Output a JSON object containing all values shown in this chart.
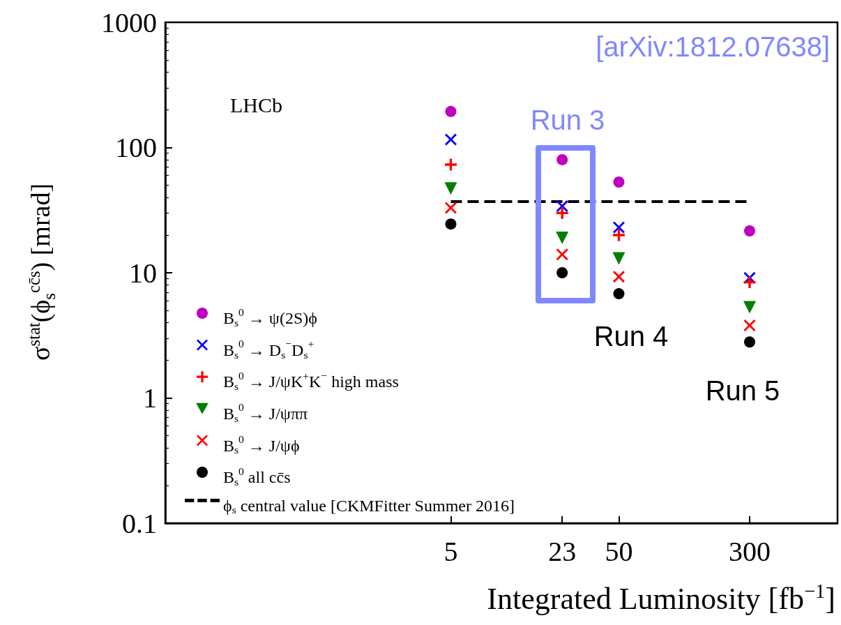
{
  "chart_data": {
    "type": "scatter",
    "xlabel": "Integrated Luminosity [fb$^{−1}$]",
    "ylabel": "σ$^{stat}$(ϕ$_{s}$$^{cc̄s}$) [mrad]",
    "x": [
      5,
      23,
      50,
      300
    ],
    "xlim": [
      0.1,
      1000
    ],
    "xticks": [
      5,
      23,
      50,
      300
    ],
    "ylim": [
      0.1,
      1000
    ],
    "yticks": [
      0.1,
      1,
      10,
      100,
      1000
    ],
    "log": "xy",
    "grid": false,
    "legend": "bottom left",
    "series": [
      {
        "name": "B$_{s}$$^{0}$ → ψ(2S)ϕ",
        "color": "#c000c0",
        "marker": "circle",
        "values": [
          194,
          80,
          53,
          21.6
        ]
      },
      {
        "name": "B$_{s}$$^{0}$ → D$_{s}$$^{−}$D$_{s}$$^{+}$",
        "color": "#0000ff",
        "marker": "x",
        "values": [
          116,
          34,
          23,
          9.1
        ]
      },
      {
        "name": "B$_{s}$$^{0}$ → J/ψK$^{+}$K$^{−}$ high mass",
        "color": "#ff0000",
        "marker": "cross",
        "values": [
          73,
          30,
          20,
          8.4
        ]
      },
      {
        "name": "B$_{s}$$^{0}$ → J/ψππ",
        "color": "#008000",
        "marker": "triangle_down",
        "values": [
          47,
          19,
          13,
          5.3
        ]
      },
      {
        "name": "B$_{s}$$^{0}$ → J/ψϕ",
        "color": "#ff0000",
        "marker": "x",
        "values": [
          33,
          14,
          9.3,
          3.8
        ]
      },
      {
        "name": "B$_{s}$$^{0}$ all cc̄s",
        "color": "#000000",
        "marker": "circle",
        "values": [
          24.5,
          10,
          6.8,
          2.8
        ]
      },
      {
        "name": "ϕ$_{s}$ central value [CKMFitter Summer 2016]",
        "type": "line",
        "color": "#000000",
        "marker": "none",
        "line_style": "dashed",
        "x": [
          5,
          300
        ],
        "values": [
          37,
          37
        ]
      }
    ],
    "annotations": [
      "LHCb",
      "[arXiv:1812.07638]",
      "Run 3",
      "Run 4",
      "Run 5"
    ]
  }
}
